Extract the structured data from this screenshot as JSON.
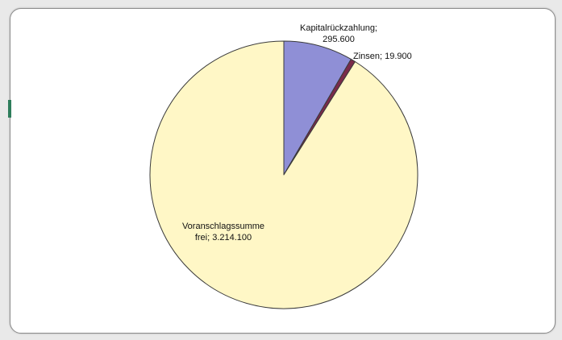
{
  "chart_data": {
    "type": "pie",
    "title": "",
    "categories": [
      "Kapitalrückzahlung",
      "Zinsen",
      "Voranschlagssumme frei"
    ],
    "values": [
      295600,
      19900,
      3214100
    ],
    "value_labels": [
      "295.600",
      "19.900",
      "3.214.100"
    ],
    "colors": [
      "#8f8fd6",
      "#7a2a4a",
      "#fff7c6"
    ],
    "legend": "none",
    "start_angle_deg": 0,
    "direction": "clockwise"
  },
  "labels": {
    "kapital_line1": "Kapitalrückzahlung;",
    "kapital_line2": "295.600",
    "zinsen": "Zinsen; 19.900",
    "frei_line1": "Voranschlagssumme",
    "frei_line2": "frei; 3.214.100"
  }
}
